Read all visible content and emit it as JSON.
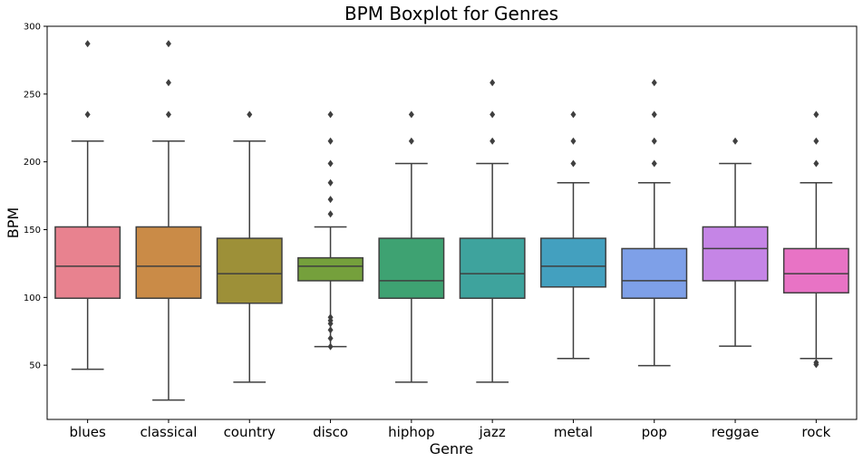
{
  "chart_data": {
    "type": "boxplot",
    "title": "BPM Boxplot for Genres",
    "xlabel": "Genre",
    "ylabel": "BPM",
    "ylim": [
      10,
      300
    ],
    "yticks": [
      50,
      100,
      150,
      200,
      250,
      300
    ],
    "grid": false,
    "legend": "none",
    "categories": [
      "blues",
      "classical",
      "country",
      "disco",
      "hiphop",
      "jazz",
      "metal",
      "pop",
      "reggae",
      "rock"
    ],
    "boxes": [
      {
        "category": "blues",
        "color": "#e8828f",
        "whisker_low": 47,
        "q1": 99.4,
        "median": 123,
        "q3": 152,
        "whisker_high": 215.3,
        "outliers": [
          234.9,
          287.1
        ]
      },
      {
        "category": "classical",
        "color": "#ca8b47",
        "whisker_low": 24.3,
        "q1": 99.4,
        "median": 123,
        "q3": 152,
        "whisker_high": 215.3,
        "outliers": [
          234.9,
          258.4,
          287.1
        ]
      },
      {
        "category": "country",
        "color": "#9d9038",
        "whisker_low": 37.5,
        "q1": 95.7,
        "median": 117.5,
        "q3": 143.6,
        "whisker_high": 215.3,
        "outliers": [
          234.9
        ]
      },
      {
        "category": "disco",
        "color": "#75a03c",
        "whisker_low": 63.7,
        "q1": 112.3,
        "median": 123,
        "q3": 129.2,
        "whisker_high": 152,
        "outliers": [
          63.7,
          69.8,
          76.0,
          80.7,
          82.9,
          85.3,
          161.5,
          172.3,
          184.6,
          198.8,
          215.3,
          234.9
        ]
      },
      {
        "category": "hiphop",
        "color": "#3ea272",
        "whisker_low": 37.5,
        "q1": 99.4,
        "median": 112.3,
        "q3": 143.6,
        "whisker_high": 198.8,
        "outliers": [
          215.3,
          234.9
        ]
      },
      {
        "category": "jazz",
        "color": "#3ea39d",
        "whisker_low": 37.5,
        "q1": 99.4,
        "median": 117.5,
        "q3": 143.6,
        "whisker_high": 198.8,
        "outliers": [
          215.3,
          234.9,
          258.4
        ]
      },
      {
        "category": "metal",
        "color": "#43a0bf",
        "whisker_low": 54.9,
        "q1": 107.7,
        "median": 123,
        "q3": 143.6,
        "whisker_high": 184.6,
        "outliers": [
          198.8,
          215.3,
          234.9
        ]
      },
      {
        "category": "pop",
        "color": "#7ea0e8",
        "whisker_low": 49.7,
        "q1": 99.4,
        "median": 112.3,
        "q3": 136,
        "whisker_high": 184.6,
        "outliers": [
          198.8,
          215.3,
          234.9,
          258.4
        ]
      },
      {
        "category": "reggae",
        "color": "#c585e6",
        "whisker_low": 64,
        "q1": 112.3,
        "median": 136,
        "q3": 152,
        "whisker_high": 198.8,
        "outliers": [
          215.3
        ]
      },
      {
        "category": "rock",
        "color": "#e873c5",
        "whisker_low": 54.9,
        "q1": 103.4,
        "median": 117.5,
        "q3": 136,
        "whisker_high": 184.6,
        "outliers": [
          50.5,
          52.0,
          198.8,
          215.3,
          234.9
        ]
      }
    ]
  }
}
